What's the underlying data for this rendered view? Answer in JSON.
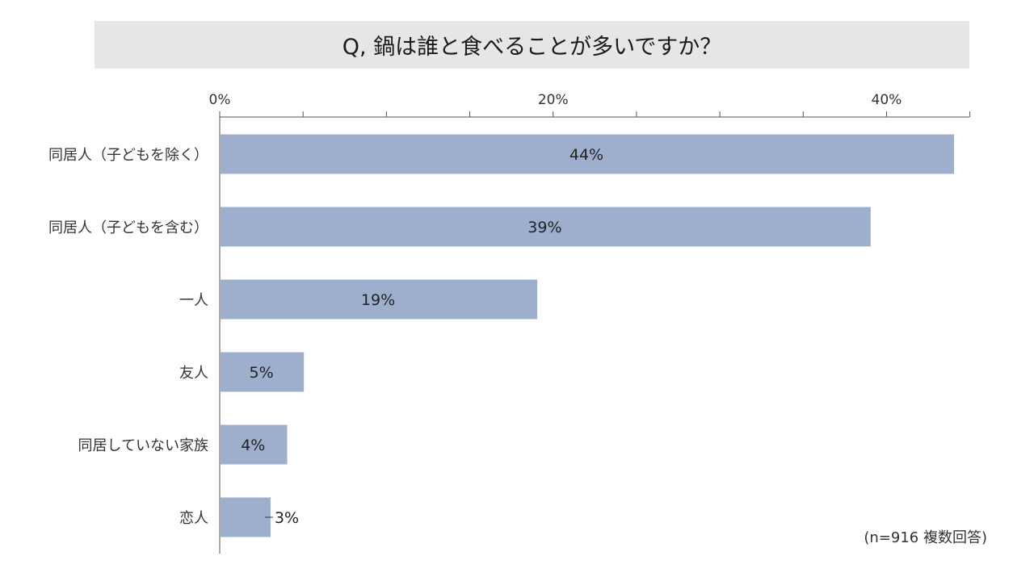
{
  "chart_data": {
    "type": "bar",
    "orientation": "horizontal",
    "title": "Q, 鍋は誰と食べることが多いですか？",
    "categories": [
      "同居人（子どもを除く）",
      "同居人（子どもを含む）",
      "一人",
      "友人",
      "同居していない家族",
      "恋人"
    ],
    "values": [
      44,
      39,
      19,
      5,
      4,
      3
    ],
    "data_labels": [
      "44%",
      "39%",
      "19%",
      "5%",
      "4%",
      "3%"
    ],
    "x_tick_labels": [
      "0%",
      "20%",
      "40%"
    ],
    "x_major_ticks": [
      0,
      20,
      40
    ],
    "x_minor_step": 5,
    "xlim": [
      0,
      45
    ],
    "xlabel": "",
    "ylabel": "",
    "axis_position": "top",
    "grid": false,
    "bar_color": "#9dafcc",
    "footnote": "(n=916 複数回答)"
  }
}
